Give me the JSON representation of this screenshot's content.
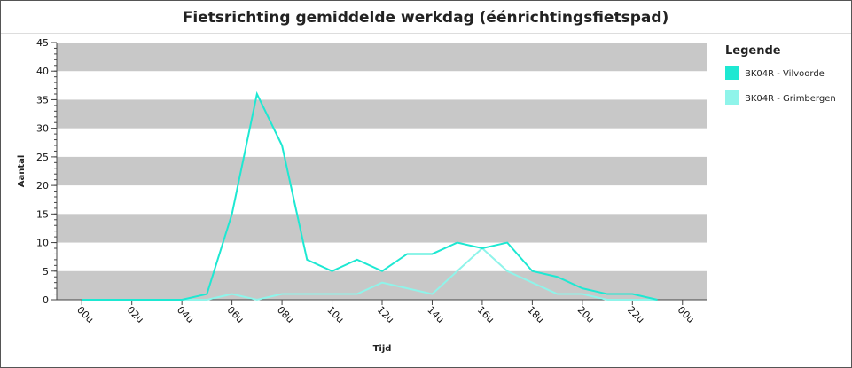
{
  "chart_data": {
    "type": "line",
    "title": "Fietsrichting gemiddelde werkdag (éénrichtingsfietspad)",
    "x_label": "Tijd",
    "y_label": "Aantal",
    "legend_title": "Legende",
    "x": [
      0,
      1,
      2,
      3,
      4,
      5,
      6,
      7,
      8,
      9,
      10,
      11,
      12,
      13,
      14,
      15,
      16,
      17,
      18,
      19,
      20,
      21,
      22,
      23
    ],
    "series": [
      {
        "name": "BK04R - Vilvoorde",
        "color": "#1ee8d2",
        "values": [
          0,
          0,
          0,
          0,
          0,
          1,
          15,
          36,
          27,
          7,
          5,
          7,
          5,
          8,
          8,
          10,
          9,
          10,
          5,
          4,
          2,
          1,
          1,
          0
        ]
      },
      {
        "name": "BK04R - Grimbergen",
        "color": "#8ff4ea",
        "values": [
          0,
          0,
          0,
          0,
          0,
          0,
          1,
          0,
          1,
          1,
          1,
          1,
          3,
          2,
          1,
          5,
          9,
          5,
          3,
          1,
          1,
          0,
          0,
          0
        ]
      }
    ],
    "xlim": [
      -1,
      25
    ],
    "xticks": [
      {
        "value": 0,
        "label": "00u"
      },
      {
        "value": 2,
        "label": "02u"
      },
      {
        "value": 4,
        "label": "04u"
      },
      {
        "value": 6,
        "label": "06u"
      },
      {
        "value": 8,
        "label": "08u"
      },
      {
        "value": 10,
        "label": "10u"
      },
      {
        "value": 12,
        "label": "12u"
      },
      {
        "value": 14,
        "label": "14u"
      },
      {
        "value": 16,
        "label": "16u"
      },
      {
        "value": 18,
        "label": "18u"
      },
      {
        "value": 20,
        "label": "20u"
      },
      {
        "value": 22,
        "label": "22u"
      },
      {
        "value": 24,
        "label": "00u"
      }
    ],
    "ylim": [
      0,
      45
    ],
    "yticks": [
      0,
      5,
      10,
      15,
      20,
      25,
      30,
      35,
      40,
      45
    ],
    "grid": "bands",
    "legend": "right"
  }
}
